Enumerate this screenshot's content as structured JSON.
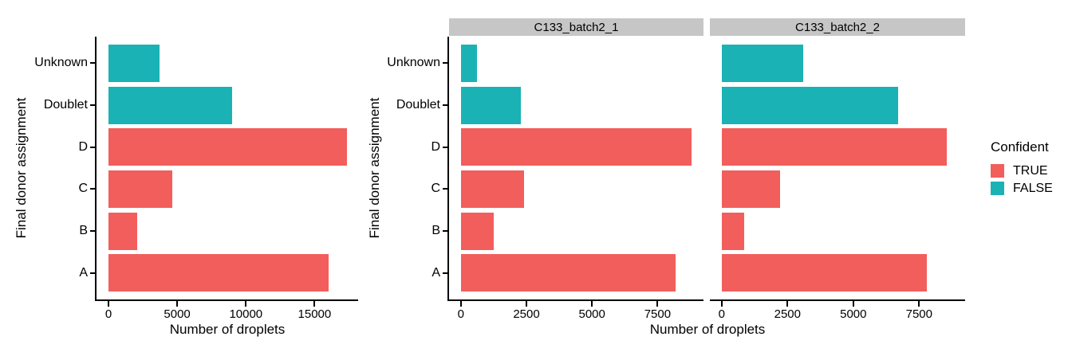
{
  "page": {
    "background": "#FFFFFF"
  },
  "colors": {
    "confident_true": "#F25E5C",
    "confident_false": "#1AB2B5",
    "strip_background": "#C6C6C6",
    "axis_line": "#000000",
    "text": "#000000"
  },
  "axes": {
    "x_label": "Number of droplets",
    "y_label": "Final donor assignment"
  },
  "legend": {
    "title": "Confident",
    "items": [
      {
        "label": "TRUE",
        "color_key": "confident_true"
      },
      {
        "label": "FALSE",
        "color_key": "confident_false"
      }
    ]
  },
  "chart_data": [
    {
      "id": "combined",
      "type": "bar",
      "orientation": "horizontal",
      "facet_label": "",
      "xlabel": "Number of droplets",
      "ylabel": "Final donor assignment",
      "categories": [
        "Unknown",
        "Doublet",
        "D",
        "C",
        "B",
        "A"
      ],
      "values": [
        3720,
        9000,
        17350,
        4630,
        2100,
        16000
      ],
      "confident": [
        false,
        false,
        true,
        true,
        true,
        true
      ],
      "xticks": [
        0,
        5000,
        10000,
        15000
      ],
      "xlim": [
        -870,
        18170
      ],
      "grid": false,
      "legend_position": "right"
    },
    {
      "id": "C133_batch2_1",
      "type": "bar",
      "orientation": "horizontal",
      "facet_label": "C133_batch2_1",
      "xlabel": "Number of droplets",
      "ylabel": "Final donor assignment",
      "categories": [
        "Unknown",
        "Doublet",
        "D",
        "C",
        "B",
        "A"
      ],
      "values": [
        620,
        2300,
        8800,
        2400,
        1240,
        8200
      ],
      "confident": [
        false,
        false,
        true,
        true,
        true,
        true
      ],
      "xticks": [
        0,
        2500,
        5000,
        7500
      ],
      "xlim": [
        -450,
        9250
      ],
      "grid": false,
      "legend_position": "right"
    },
    {
      "id": "C133_batch2_2",
      "type": "bar",
      "orientation": "horizontal",
      "facet_label": "C133_batch2_2",
      "xlabel": "Number of droplets",
      "ylabel": "Final donor assignment",
      "categories": [
        "Unknown",
        "Doublet",
        "D",
        "C",
        "B",
        "A"
      ],
      "values": [
        3100,
        6700,
        8550,
        2230,
        860,
        7800
      ],
      "confident": [
        false,
        false,
        true,
        true,
        true,
        true
      ],
      "xticks": [
        0,
        2500,
        5000,
        7500
      ],
      "xlim": [
        -450,
        9250
      ],
      "grid": false,
      "legend_position": "right"
    }
  ]
}
